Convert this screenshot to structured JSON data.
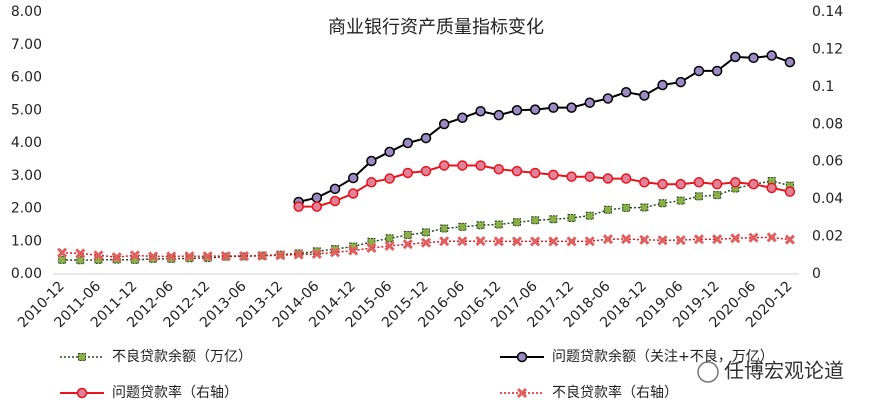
{
  "chart_data": {
    "type": "line",
    "title": "商业银行资产质量指标变化",
    "watermark": "任博宏观论道",
    "categories": [
      "2010-12",
      null,
      "2011-06",
      null,
      "2011-12",
      null,
      "2012-06",
      null,
      "2012-12",
      null,
      "2013-06",
      null,
      "2013-12",
      null,
      "2014-06",
      null,
      "2014-12",
      null,
      "2015-06",
      null,
      "2015-12",
      null,
      "2016-06",
      null,
      "2016-12",
      null,
      "2017-06",
      null,
      "2017-12",
      null,
      "2018-06",
      null,
      "2018-12",
      null,
      "2019-06",
      null,
      "2019-12",
      null,
      "2020-06",
      null,
      "2020-12"
    ],
    "ylim": [
      0,
      8
    ],
    "yticks": [
      {
        "value": 0,
        "label": "0.00"
      },
      {
        "value": 1,
        "label": "1.00"
      },
      {
        "value": 2,
        "label": "2.00"
      },
      {
        "value": 3,
        "label": "3.00"
      },
      {
        "value": 4,
        "label": "4.00"
      },
      {
        "value": 5,
        "label": "5.00"
      },
      {
        "value": 6,
        "label": "6.00"
      },
      {
        "value": 7,
        "label": "7.00"
      },
      {
        "value": 8,
        "label": "8.00"
      }
    ],
    "y2lim": [
      0,
      0.14
    ],
    "y2ticks": [
      0,
      0.02,
      0.04,
      0.06,
      0.08,
      0.1,
      0.12,
      0.14
    ],
    "grid": false,
    "legend": "bottom",
    "series": [
      {
        "name": "不良贷款余额（万亿）",
        "color": "#1f4d1f",
        "marker_color": "#8fae45",
        "line_style": "dotted",
        "marker": "square",
        "values": [
          0.43,
          0.42,
          0.43,
          0.44,
          0.43,
          0.46,
          0.46,
          0.48,
          0.49,
          0.53,
          0.54,
          0.56,
          0.59,
          0.63,
          0.69,
          0.76,
          0.84,
          0.98,
          1.09,
          1.19,
          1.27,
          1.39,
          1.44,
          1.49,
          1.51,
          1.58,
          1.64,
          1.67,
          1.71,
          1.78,
          1.96,
          2.02,
          2.03,
          2.16,
          2.24,
          2.37,
          2.41,
          2.61,
          2.74,
          2.84,
          2.7
        ]
      },
      {
        "name": "问题贷款余额（关注+不良，万亿）",
        "color": "#000000",
        "marker_color": "#9c8ac4",
        "line_style": "solid",
        "marker": "circle",
        "values": [
          null,
          null,
          null,
          null,
          null,
          null,
          null,
          null,
          null,
          null,
          null,
          null,
          null,
          2.2,
          2.33,
          2.6,
          2.93,
          3.45,
          3.73,
          4.0,
          4.15,
          4.58,
          4.77,
          4.97,
          4.85,
          5.0,
          5.02,
          5.08,
          5.08,
          5.23,
          5.36,
          5.55,
          5.45,
          5.77,
          5.86,
          6.2,
          6.2,
          6.63,
          6.6,
          6.67,
          6.47
        ]
      },
      {
        "name": "问题贷款率（右轴）",
        "color": "#e8141c",
        "marker_color": "#e0829a",
        "line_style": "solid",
        "marker": "circle",
        "axis": "y2",
        "values": [
          null,
          null,
          null,
          null,
          null,
          null,
          null,
          null,
          null,
          null,
          null,
          null,
          null,
          0.036,
          0.036,
          0.039,
          0.043,
          0.049,
          0.051,
          0.054,
          0.055,
          0.058,
          0.058,
          0.058,
          0.056,
          0.055,
          0.054,
          0.053,
          0.052,
          0.052,
          0.051,
          0.051,
          0.049,
          0.048,
          0.048,
          0.049,
          0.048,
          0.049,
          0.048,
          0.046,
          0.044
        ]
      },
      {
        "name": "不良贷款率（右轴）",
        "color": "#e8141c",
        "marker_color": "#e06060",
        "line_style": "dotted",
        "marker": "cross",
        "axis": "y2",
        "values": [
          0.0114,
          0.011,
          0.01,
          0.009,
          0.01,
          0.0094,
          0.0094,
          0.0095,
          0.0095,
          0.0096,
          0.0096,
          0.0097,
          0.01,
          0.0104,
          0.0107,
          0.0116,
          0.0125,
          0.0139,
          0.015,
          0.0159,
          0.0167,
          0.0175,
          0.0175,
          0.0176,
          0.0174,
          0.0174,
          0.0174,
          0.0174,
          0.0174,
          0.0175,
          0.0186,
          0.0187,
          0.0183,
          0.018,
          0.0181,
          0.0186,
          0.0186,
          0.0191,
          0.0194,
          0.0196,
          0.0184
        ]
      }
    ]
  }
}
